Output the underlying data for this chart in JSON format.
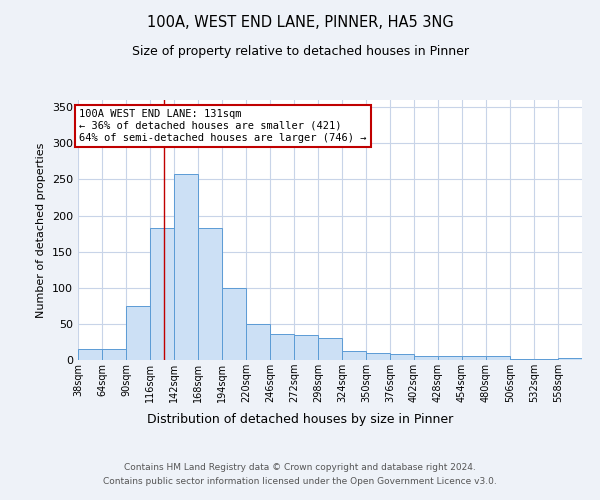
{
  "title1": "100A, WEST END LANE, PINNER, HA5 3NG",
  "title2": "Size of property relative to detached houses in Pinner",
  "xlabel": "Distribution of detached houses by size in Pinner",
  "ylabel": "Number of detached properties",
  "bin_labels": [
    "38sqm",
    "64sqm",
    "90sqm",
    "116sqm",
    "142sqm",
    "168sqm",
    "194sqm",
    "220sqm",
    "246sqm",
    "272sqm",
    "298sqm",
    "324sqm",
    "350sqm",
    "376sqm",
    "402sqm",
    "428sqm",
    "454sqm",
    "480sqm",
    "506sqm",
    "532sqm",
    "558sqm"
  ],
  "bin_edges": [
    38,
    64,
    90,
    116,
    142,
    168,
    194,
    220,
    246,
    272,
    298,
    324,
    350,
    376,
    402,
    428,
    454,
    480,
    506,
    532,
    558,
    584
  ],
  "values": [
    15,
    15,
    75,
    183,
    257,
    183,
    100,
    50,
    36,
    35,
    30,
    13,
    10,
    9,
    5,
    5,
    5,
    5,
    2,
    1,
    3
  ],
  "bar_color": "#cce0f5",
  "bar_edge_color": "#5b9bd5",
  "property_size": 131,
  "vline_color": "#c00000",
  "annotation_line1": "100A WEST END LANE: 131sqm",
  "annotation_line2": "← 36% of detached houses are smaller (421)",
  "annotation_line3": "64% of semi-detached houses are larger (746) →",
  "annotation_box_color": "white",
  "annotation_box_edge_color": "#c00000",
  "ylim": [
    0,
    360
  ],
  "yticks": [
    0,
    50,
    100,
    150,
    200,
    250,
    300,
    350
  ],
  "footnote1": "Contains HM Land Registry data © Crown copyright and database right 2024.",
  "footnote2": "Contains public sector information licensed under the Open Government Licence v3.0.",
  "background_color": "#eef2f8",
  "plot_background_color": "white",
  "grid_color": "#c8d4e8"
}
